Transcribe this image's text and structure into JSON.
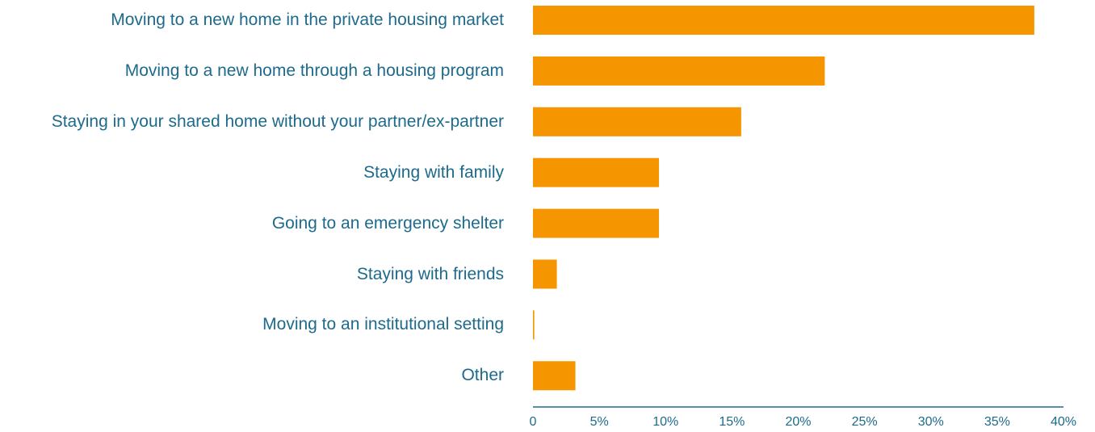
{
  "chart_data": {
    "type": "barh",
    "categories": [
      "Moving to a new home in the private housing market",
      "Moving to a new home through a housing program",
      "Staying in your shared home without your partner/ex-partner",
      "Staying with family",
      "Going to an emergency shelter",
      "Staying with friends",
      "Moving to an institutional setting",
      "Other"
    ],
    "values": [
      37.8,
      22.0,
      15.7,
      9.5,
      9.5,
      1.8,
      0.1,
      3.2
    ],
    "color": "#f59600",
    "xlim": [
      0,
      40
    ],
    "xticks": [
      0,
      {
        "value": 5,
        "label": "5%"
      },
      {
        "value": 10,
        "label": "10%"
      },
      {
        "value": 15,
        "label": "15%"
      },
      {
        "value": 20,
        "label": "20%"
      },
      {
        "value": 25,
        "label": "25%"
      },
      {
        "value": 30,
        "label": "30%"
      },
      {
        "value": 35,
        "label": "35%"
      },
      {
        "value": 40,
        "label": "40%"
      }
    ],
    "grid": false
  }
}
